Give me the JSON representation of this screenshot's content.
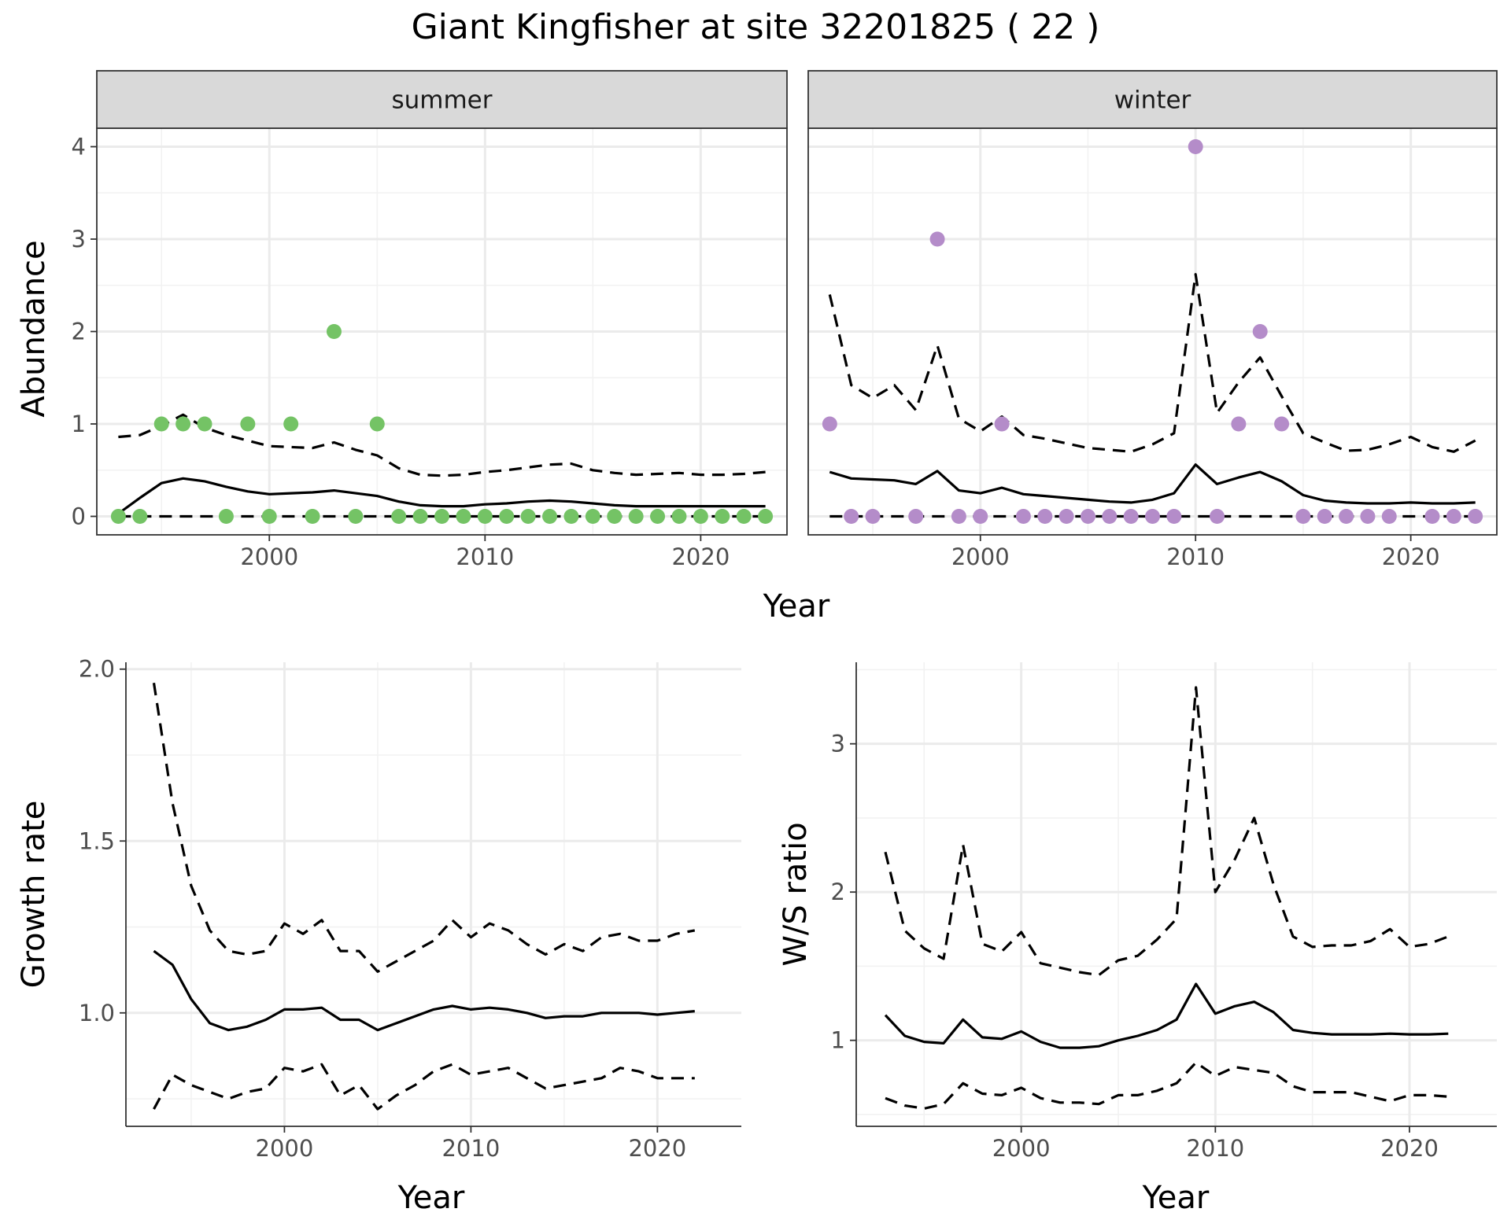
{
  "title": "Giant Kingfisher at site 32201825 ( 22 )",
  "colors": {
    "summer_points": "#74c365",
    "winter_points": "#b48cc9",
    "lines": "#000000",
    "strip_background": "#d9d9d9"
  },
  "chart_data": [
    {
      "type": "scatter",
      "id": "abundance",
      "facet_labels": [
        "summer",
        "winter"
      ],
      "xlabel": "Year",
      "ylabel": "Abundance",
      "xlim": [
        1992,
        2024
      ],
      "ylim": [
        -0.2,
        4.2
      ],
      "xticks": [
        2000,
        2010,
        2020
      ],
      "yticks": [
        0,
        1,
        2,
        3,
        4
      ],
      "grid": true,
      "facets": [
        {
          "label": "summer",
          "color": "#74c365",
          "points": {
            "x": [
              1993,
              1994,
              1995,
              1996,
              1997,
              1998,
              1999,
              2000,
              2001,
              2002,
              2003,
              2004,
              2005,
              2006,
              2007,
              2008,
              2009,
              2010,
              2011,
              2012,
              2013,
              2014,
              2015,
              2016,
              2017,
              2018,
              2019,
              2020,
              2021,
              2022,
              2023
            ],
            "y": [
              0,
              0,
              1,
              1,
              1,
              0,
              1,
              0,
              1,
              0,
              2,
              0,
              1,
              0,
              0,
              0,
              0,
              0,
              0,
              0,
              0,
              0,
              0,
              0,
              0,
              0,
              0,
              0,
              0,
              0,
              0
            ]
          },
          "mean": {
            "x": [
              1993,
              1994,
              1995,
              1996,
              1997,
              1998,
              1999,
              2000,
              2001,
              2002,
              2003,
              2004,
              2005,
              2006,
              2007,
              2008,
              2009,
              2010,
              2011,
              2012,
              2013,
              2014,
              2015,
              2016,
              2017,
              2018,
              2019,
              2020,
              2021,
              2022,
              2023
            ],
            "y": [
              0.03,
              0.2,
              0.36,
              0.41,
              0.38,
              0.32,
              0.27,
              0.24,
              0.25,
              0.26,
              0.28,
              0.25,
              0.22,
              0.16,
              0.12,
              0.11,
              0.11,
              0.13,
              0.14,
              0.16,
              0.17,
              0.16,
              0.14,
              0.12,
              0.11,
              0.11,
              0.11,
              0.11,
              0.11,
              0.11,
              0.11
            ]
          },
          "upper": {
            "x": [
              1993,
              1994,
              1995,
              1996,
              1997,
              1998,
              1999,
              2000,
              2001,
              2002,
              2003,
              2004,
              2005,
              2006,
              2007,
              2008,
              2009,
              2010,
              2011,
              2012,
              2013,
              2014,
              2015,
              2016,
              2017,
              2018,
              2019,
              2020,
              2021,
              2022,
              2023
            ],
            "y": [
              0.86,
              0.88,
              0.98,
              1.1,
              0.96,
              0.88,
              0.82,
              0.76,
              0.75,
              0.74,
              0.8,
              0.72,
              0.66,
              0.52,
              0.45,
              0.44,
              0.45,
              0.48,
              0.5,
              0.53,
              0.56,
              0.57,
              0.5,
              0.47,
              0.45,
              0.46,
              0.47,
              0.45,
              0.45,
              0.46,
              0.48
            ]
          },
          "lower": {
            "x": [
              1993,
              2023
            ],
            "y": [
              0,
              0
            ]
          }
        },
        {
          "label": "winter",
          "color": "#b48cc9",
          "points": {
            "x": [
              1993,
              1994,
              1995,
              1997,
              1998,
              1999,
              2000,
              2001,
              2002,
              2003,
              2004,
              2005,
              2006,
              2007,
              2008,
              2009,
              2010,
              2011,
              2012,
              2013,
              2014,
              2015,
              2016,
              2017,
              2018,
              2019,
              2021,
              2022,
              2023
            ],
            "y": [
              1,
              0,
              0,
              0,
              3,
              0,
              0,
              1,
              0,
              0,
              0,
              0,
              0,
              0,
              0,
              0,
              4,
              0,
              1,
              2,
              1,
              0,
              0,
              0,
              0,
              0,
              0,
              0,
              0
            ]
          },
          "mean": {
            "x": [
              1993,
              1994,
              1995,
              1996,
              1997,
              1998,
              1999,
              2000,
              2001,
              2002,
              2003,
              2004,
              2005,
              2006,
              2007,
              2008,
              2009,
              2010,
              2011,
              2012,
              2013,
              2014,
              2015,
              2016,
              2017,
              2018,
              2019,
              2020,
              2021,
              2022,
              2023
            ],
            "y": [
              0.48,
              0.41,
              0.4,
              0.39,
              0.35,
              0.49,
              0.28,
              0.25,
              0.31,
              0.24,
              0.22,
              0.2,
              0.18,
              0.16,
              0.15,
              0.18,
              0.25,
              0.56,
              0.35,
              0.42,
              0.48,
              0.38,
              0.23,
              0.17,
              0.15,
              0.14,
              0.14,
              0.15,
              0.14,
              0.14,
              0.15
            ]
          },
          "upper": {
            "x": [
              1993,
              1994,
              1995,
              1996,
              1997,
              1998,
              1999,
              2000,
              2001,
              2002,
              2003,
              2004,
              2005,
              2006,
              2007,
              2008,
              2009,
              2010,
              2011,
              2012,
              2013,
              2014,
              2015,
              2016,
              2017,
              2018,
              2019,
              2020,
              2021,
              2022,
              2023
            ],
            "y": [
              2.4,
              1.42,
              1.28,
              1.42,
              1.15,
              1.85,
              1.06,
              0.92,
              1.08,
              0.88,
              0.84,
              0.79,
              0.74,
              0.72,
              0.7,
              0.78,
              0.9,
              2.62,
              1.12,
              1.45,
              1.72,
              1.3,
              0.9,
              0.8,
              0.71,
              0.72,
              0.78,
              0.86,
              0.75,
              0.7,
              0.82
            ]
          },
          "lower": {
            "x": [
              1993,
              2023
            ],
            "y": [
              0,
              0
            ]
          }
        }
      ]
    },
    {
      "type": "line",
      "id": "growth",
      "xlabel": "Year",
      "ylabel": "Growth rate",
      "xlim": [
        1991.5,
        2024.5
      ],
      "ylim": [
        0.67,
        2.02
      ],
      "xticks": [
        2000,
        2010,
        2020
      ],
      "yticks": [
        1.0,
        1.5,
        2.0
      ],
      "ytick_labels": [
        "1.0",
        "1.5",
        "2.0"
      ],
      "grid": true,
      "mean": {
        "x": [
          1993,
          1994,
          1995,
          1996,
          1997,
          1998,
          1999,
          2000,
          2001,
          2002,
          2003,
          2004,
          2005,
          2006,
          2007,
          2008,
          2009,
          2010,
          2011,
          2012,
          2013,
          2014,
          2015,
          2016,
          2017,
          2018,
          2019,
          2020,
          2021,
          2022
        ],
        "y": [
          1.18,
          1.14,
          1.04,
          0.97,
          0.95,
          0.96,
          0.98,
          1.01,
          1.01,
          1.015,
          0.98,
          0.98,
          0.95,
          0.97,
          0.99,
          1.01,
          1.02,
          1.01,
          1.015,
          1.01,
          1.0,
          0.985,
          0.99,
          0.99,
          1.0,
          1.0,
          1.0,
          0.995,
          1.0,
          1.005
        ]
      },
      "upper": {
        "x": [
          1993,
          1994,
          1995,
          1996,
          1997,
          1998,
          1999,
          2000,
          2001,
          2002,
          2003,
          2004,
          2005,
          2006,
          2007,
          2008,
          2009,
          2010,
          2011,
          2012,
          2013,
          2014,
          2015,
          2016,
          2017,
          2018,
          2019,
          2020,
          2021,
          2022
        ],
        "y": [
          1.96,
          1.61,
          1.37,
          1.24,
          1.18,
          1.17,
          1.18,
          1.26,
          1.23,
          1.27,
          1.18,
          1.18,
          1.12,
          1.15,
          1.18,
          1.21,
          1.27,
          1.22,
          1.26,
          1.24,
          1.2,
          1.17,
          1.2,
          1.18,
          1.22,
          1.23,
          1.21,
          1.21,
          1.23,
          1.24
        ]
      },
      "lower": {
        "x": [
          1993,
          1994,
          1995,
          1996,
          1997,
          1998,
          1999,
          2000,
          2001,
          2002,
          2003,
          2004,
          2005,
          2006,
          2007,
          2008,
          2009,
          2010,
          2011,
          2012,
          2013,
          2014,
          2015,
          2016,
          2017,
          2018,
          2019,
          2020,
          2021,
          2022
        ],
        "y": [
          0.72,
          0.82,
          0.79,
          0.77,
          0.75,
          0.77,
          0.78,
          0.84,
          0.83,
          0.85,
          0.76,
          0.79,
          0.72,
          0.76,
          0.79,
          0.83,
          0.85,
          0.82,
          0.83,
          0.84,
          0.81,
          0.78,
          0.79,
          0.8,
          0.81,
          0.84,
          0.83,
          0.81,
          0.81,
          0.81
        ]
      }
    },
    {
      "type": "line",
      "id": "ws_ratio",
      "xlabel": "Year",
      "ylabel": "W/S ratio",
      "xlim": [
        1991.5,
        2024.5
      ],
      "ylim": [
        0.42,
        3.55
      ],
      "xticks": [
        2000,
        2010,
        2020
      ],
      "yticks": [
        1,
        2,
        3
      ],
      "grid": true,
      "mean": {
        "x": [
          1993,
          1994,
          1995,
          1996,
          1997,
          1998,
          1999,
          2000,
          2001,
          2002,
          2003,
          2004,
          2005,
          2006,
          2007,
          2008,
          2009,
          2010,
          2011,
          2012,
          2013,
          2014,
          2015,
          2016,
          2017,
          2018,
          2019,
          2020,
          2021,
          2022
        ],
        "y": [
          1.17,
          1.03,
          0.99,
          0.98,
          1.14,
          1.02,
          1.01,
          1.06,
          0.99,
          0.95,
          0.95,
          0.96,
          1.0,
          1.03,
          1.07,
          1.14,
          1.38,
          1.18,
          1.23,
          1.26,
          1.19,
          1.07,
          1.05,
          1.04,
          1.04,
          1.04,
          1.045,
          1.04,
          1.04,
          1.045
        ]
      },
      "upper": {
        "x": [
          1993,
          1994,
          1995,
          1996,
          1997,
          1998,
          1999,
          2000,
          2001,
          2002,
          2003,
          2004,
          2005,
          2006,
          2007,
          2008,
          2009,
          2010,
          2011,
          2012,
          2013,
          2014,
          2015,
          2016,
          2017,
          2018,
          2019,
          2020,
          2021,
          2022
        ],
        "y": [
          2.27,
          1.74,
          1.62,
          1.55,
          2.32,
          1.65,
          1.6,
          1.73,
          1.52,
          1.49,
          1.46,
          1.44,
          1.54,
          1.57,
          1.68,
          1.82,
          3.38,
          2.0,
          2.22,
          2.5,
          2.05,
          1.7,
          1.63,
          1.64,
          1.64,
          1.67,
          1.75,
          1.63,
          1.65,
          1.7
        ]
      },
      "lower": {
        "x": [
          1993,
          1994,
          1995,
          1996,
          1997,
          1998,
          1999,
          2000,
          2001,
          2002,
          2003,
          2004,
          2005,
          2006,
          2007,
          2008,
          2009,
          2010,
          2011,
          2012,
          2013,
          2014,
          2015,
          2016,
          2017,
          2018,
          2019,
          2020,
          2021,
          2022
        ],
        "y": [
          0.61,
          0.56,
          0.54,
          0.57,
          0.71,
          0.64,
          0.63,
          0.68,
          0.61,
          0.58,
          0.58,
          0.57,
          0.63,
          0.63,
          0.66,
          0.71,
          0.85,
          0.76,
          0.82,
          0.8,
          0.78,
          0.69,
          0.65,
          0.65,
          0.65,
          0.62,
          0.59,
          0.63,
          0.63,
          0.62
        ]
      }
    }
  ]
}
